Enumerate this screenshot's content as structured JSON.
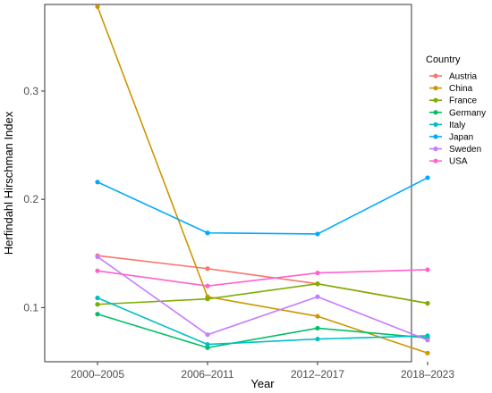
{
  "chart_data": {
    "type": "line",
    "title": "",
    "xlabel": "Year",
    "ylabel": "Herfindahl Hirschman Index",
    "categories": [
      "2000–2005",
      "2006–2011",
      "2012–2017",
      "2018–2023"
    ],
    "ylim": [
      0.05,
      0.38
    ],
    "yticks": [
      0.1,
      0.2,
      0.3
    ],
    "ytick_labels": [
      "0.1",
      "0.2",
      "0.3"
    ],
    "grid": false,
    "legend": {
      "title": "Country",
      "placement": "right"
    },
    "series": [
      {
        "name": "Austria",
        "color": "#F8766D",
        "values": [
          0.148,
          0.136,
          0.122,
          0.104
        ]
      },
      {
        "name": "China",
        "color": "#CD9600",
        "values": [
          0.378,
          0.11,
          0.092,
          0.058
        ]
      },
      {
        "name": "France",
        "color": "#7CAE00",
        "values": [
          0.103,
          0.108,
          0.122,
          0.104
        ]
      },
      {
        "name": "Germany",
        "color": "#00BE67",
        "values": [
          0.094,
          0.063,
          0.081,
          0.072
        ]
      },
      {
        "name": "Italy",
        "color": "#00BFC4",
        "values": [
          0.109,
          0.066,
          0.071,
          0.074
        ]
      },
      {
        "name": "Japan",
        "color": "#00A9FF",
        "values": [
          0.216,
          0.169,
          0.168,
          0.22
        ]
      },
      {
        "name": "Sweden",
        "color": "#C77CFF",
        "values": [
          0.147,
          0.075,
          0.11,
          0.07
        ]
      },
      {
        "name": "USA",
        "color": "#FF61CC",
        "values": [
          0.134,
          0.12,
          0.132,
          0.135
        ]
      }
    ]
  }
}
